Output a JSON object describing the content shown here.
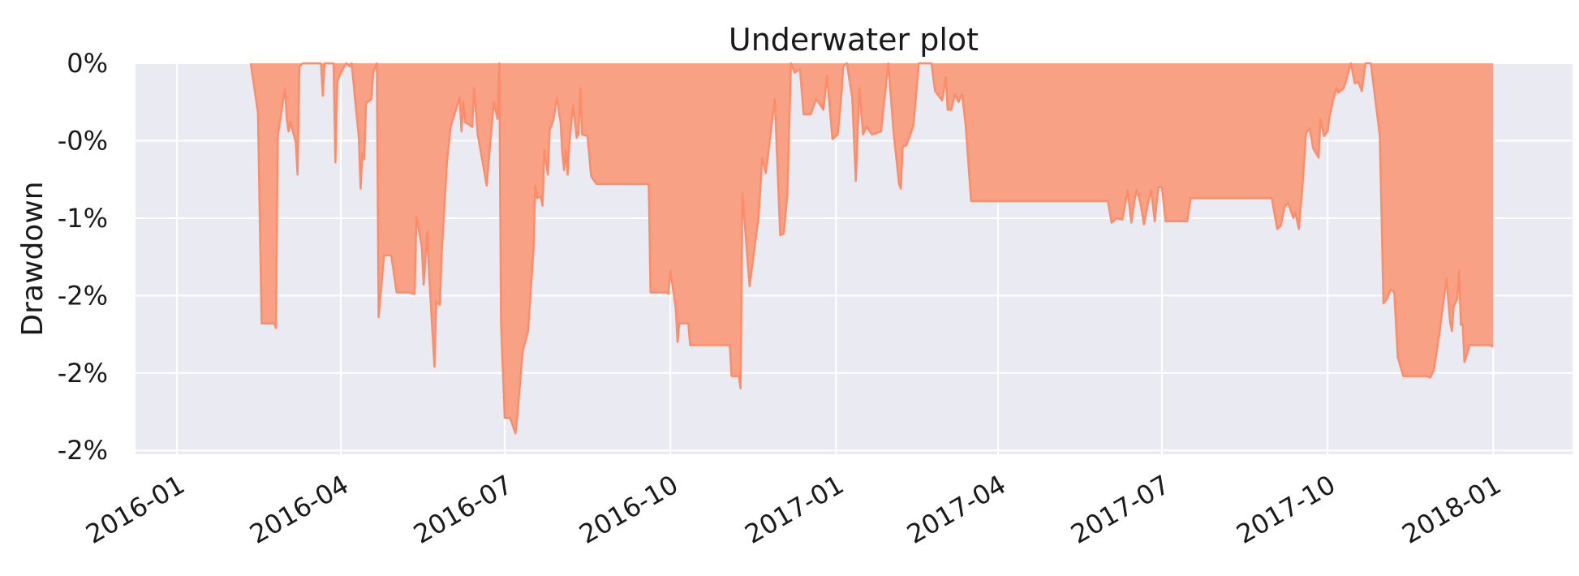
{
  "chart_data": {
    "type": "area",
    "title": "Underwater plot",
    "xlabel": "",
    "ylabel": "Drawdown",
    "x_range": [
      "2015-12-09",
      "2018-02-14"
    ],
    "y_range": [
      -0.02525,
      0
    ],
    "x_ticks": [
      {
        "date": "2016-01-01",
        "label": "2016-01"
      },
      {
        "date": "2016-04-01",
        "label": "2016-04"
      },
      {
        "date": "2016-07-01",
        "label": "2016-07"
      },
      {
        "date": "2016-10-01",
        "label": "2016-10"
      },
      {
        "date": "2017-01-01",
        "label": "2017-01"
      },
      {
        "date": "2017-04-01",
        "label": "2017-04"
      },
      {
        "date": "2017-07-01",
        "label": "2017-07"
      },
      {
        "date": "2017-10-01",
        "label": "2017-10"
      },
      {
        "date": "2018-01-01",
        "label": "2018-01"
      }
    ],
    "y_ticks": [
      {
        "value": 0,
        "label": "0%"
      },
      {
        "value": -0.005,
        "label": "-0%"
      },
      {
        "value": -0.01,
        "label": "-1%"
      },
      {
        "value": -0.015,
        "label": "-2%"
      },
      {
        "value": -0.02,
        "label": "-2%"
      },
      {
        "value": -0.025,
        "label": "-2%"
      }
    ],
    "grid": true,
    "colors": {
      "fill": "#f8a184",
      "line": "#ff8c69",
      "background": "#eaeaf2",
      "grid": "#ffffff"
    },
    "series": [
      {
        "points": [
          [
            "2016-02-11",
            0
          ],
          [
            "2016-02-15",
            -0.0032
          ],
          [
            "2016-02-17",
            -0.0168
          ],
          [
            "2016-02-24",
            -0.0168
          ],
          [
            "2016-02-25",
            -0.0171
          ],
          [
            "2016-02-26",
            -0.0047
          ],
          [
            "2016-03-01",
            -0.0016
          ],
          [
            "2016-03-02",
            -0.0036
          ],
          [
            "2016-03-03",
            -0.0044
          ],
          [
            "2016-03-04",
            -0.0038
          ],
          [
            "2016-03-07",
            -0.0051
          ],
          [
            "2016-03-08",
            -0.0072
          ],
          [
            "2016-03-09",
            -0.0002
          ],
          [
            "2016-03-11",
            0
          ],
          [
            "2016-03-21",
            0
          ],
          [
            "2016-03-22",
            -0.0021
          ],
          [
            "2016-03-23",
            0
          ],
          [
            "2016-03-28",
            0
          ],
          [
            "2016-03-29",
            -0.0064
          ],
          [
            "2016-03-30",
            -0.0012
          ],
          [
            "2016-04-01",
            -0.0006
          ],
          [
            "2016-04-04",
            0
          ],
          [
            "2016-04-06",
            -0.0002
          ],
          [
            "2016-04-07",
            0
          ],
          [
            "2016-04-11",
            -0.0048
          ],
          [
            "2016-04-12",
            -0.0081
          ],
          [
            "2016-04-13",
            -0.0058
          ],
          [
            "2016-04-14",
            -0.0062
          ],
          [
            "2016-04-15",
            -0.0026
          ],
          [
            "2016-04-18",
            -0.0023
          ],
          [
            "2016-04-19",
            -0.0006
          ],
          [
            "2016-04-21",
            0
          ],
          [
            "2016-04-22",
            -0.0164
          ],
          [
            "2016-04-25",
            -0.0124
          ],
          [
            "2016-04-29",
            -0.0124
          ],
          [
            "2016-05-02",
            -0.0148
          ],
          [
            "2016-05-09",
            -0.0148
          ],
          [
            "2016-05-12",
            -0.0149
          ],
          [
            "2016-05-13",
            -0.0099
          ],
          [
            "2016-05-16",
            -0.0119
          ],
          [
            "2016-05-17",
            -0.0143
          ],
          [
            "2016-05-19",
            -0.0109
          ],
          [
            "2016-05-20",
            -0.0135
          ],
          [
            "2016-05-23",
            -0.0196
          ],
          [
            "2016-05-24",
            -0.0154
          ],
          [
            "2016-05-26",
            -0.0156
          ],
          [
            "2016-05-27",
            -0.0123
          ],
          [
            "2016-05-30",
            -0.0063
          ],
          [
            "2016-06-01",
            -0.0041
          ],
          [
            "2016-06-06",
            -0.0022
          ],
          [
            "2016-06-07",
            -0.0044
          ],
          [
            "2016-06-08",
            -0.0025
          ],
          [
            "2016-06-09",
            -0.0038
          ],
          [
            "2016-06-13",
            -0.0041
          ],
          [
            "2016-06-14",
            -0.0016
          ],
          [
            "2016-06-16",
            -0.0046
          ],
          [
            "2016-06-20",
            -0.0072
          ],
          [
            "2016-06-21",
            -0.0079
          ],
          [
            "2016-06-23",
            -0.0051
          ],
          [
            "2016-06-25",
            -0.0025
          ],
          [
            "2016-06-27",
            -0.0036
          ],
          [
            "2016-06-28",
            0
          ],
          [
            "2016-06-29",
            -0.0169
          ],
          [
            "2016-07-01",
            -0.0229
          ],
          [
            "2016-07-04",
            -0.0229
          ],
          [
            "2016-07-07",
            -0.0239
          ],
          [
            "2016-07-08",
            -0.0228
          ],
          [
            "2016-07-11",
            -0.0186
          ],
          [
            "2016-07-14",
            -0.0173
          ],
          [
            "2016-07-17",
            -0.012
          ],
          [
            "2016-07-18",
            -0.0079
          ],
          [
            "2016-07-19",
            -0.0087
          ],
          [
            "2016-07-21",
            -0.0086
          ],
          [
            "2016-07-22",
            -0.0092
          ],
          [
            "2016-07-23",
            -0.0056
          ],
          [
            "2016-07-25",
            -0.0072
          ],
          [
            "2016-07-26",
            -0.0043
          ],
          [
            "2016-07-28",
            -0.0037
          ],
          [
            "2016-07-30",
            -0.0022
          ],
          [
            "2016-08-01",
            -0.0038
          ],
          [
            "2016-08-02",
            -0.0058
          ],
          [
            "2016-08-03",
            -0.0069
          ],
          [
            "2016-08-04",
            -0.0056
          ],
          [
            "2016-08-05",
            -0.0072
          ],
          [
            "2016-08-06",
            -0.005
          ],
          [
            "2016-08-08",
            -0.0027
          ],
          [
            "2016-08-10",
            -0.0048
          ],
          [
            "2016-08-11",
            -0.0046
          ],
          [
            "2016-08-12",
            -0.0016
          ],
          [
            "2016-08-13",
            -0.0046
          ],
          [
            "2016-08-16",
            -0.0047
          ],
          [
            "2016-08-18",
            -0.0073
          ],
          [
            "2016-08-21",
            -0.0078
          ],
          [
            "2016-09-19",
            -0.0078
          ],
          [
            "2016-09-20",
            -0.0148
          ],
          [
            "2016-09-29",
            -0.0148
          ],
          [
            "2016-09-30",
            -0.0149
          ],
          [
            "2016-10-01",
            -0.0134
          ],
          [
            "2016-10-04",
            -0.0158
          ],
          [
            "2016-10-05",
            -0.018
          ],
          [
            "2016-10-06",
            -0.0168
          ],
          [
            "2016-10-11",
            -0.0168
          ],
          [
            "2016-10-12",
            -0.0182
          ],
          [
            "2016-11-03",
            -0.0182
          ],
          [
            "2016-11-04",
            -0.0202
          ],
          [
            "2016-11-08",
            -0.0202
          ],
          [
            "2016-11-09",
            -0.021
          ],
          [
            "2016-11-10",
            -0.0084
          ],
          [
            "2016-11-14",
            -0.0144
          ],
          [
            "2016-11-19",
            -0.0099
          ],
          [
            "2016-11-21",
            -0.0061
          ],
          [
            "2016-11-23",
            -0.0071
          ],
          [
            "2016-11-28",
            -0.0023
          ],
          [
            "2016-12-01",
            -0.0111
          ],
          [
            "2016-12-03",
            -0.011
          ],
          [
            "2016-12-05",
            -0.0084
          ],
          [
            "2016-12-07",
            0
          ],
          [
            "2016-12-09",
            -0.0006
          ],
          [
            "2016-12-12",
            -0.0004
          ],
          [
            "2016-12-14",
            -0.0033
          ],
          [
            "2016-12-18",
            -0.0033
          ],
          [
            "2016-12-21",
            -0.0023
          ],
          [
            "2016-12-25",
            -0.003
          ],
          [
            "2016-12-27",
            -0.0008
          ],
          [
            "2016-12-30",
            -0.0049
          ],
          [
            "2017-01-02",
            -0.0046
          ],
          [
            "2017-01-04",
            -0.002
          ],
          [
            "2017-01-05",
            -0.0002
          ],
          [
            "2017-01-07",
            0
          ],
          [
            "2017-01-10",
            -0.0022
          ],
          [
            "2017-01-12",
            -0.0076
          ],
          [
            "2017-01-14",
            -0.0016
          ],
          [
            "2017-01-16",
            -0.0046
          ],
          [
            "2017-01-18",
            -0.0041
          ],
          [
            "2017-01-21",
            -0.0046
          ],
          [
            "2017-01-26",
            -0.0044
          ],
          [
            "2017-01-30",
            0
          ],
          [
            "2017-02-02",
            -0.0045
          ],
          [
            "2017-02-05",
            -0.0078
          ],
          [
            "2017-02-06",
            -0.0081
          ],
          [
            "2017-02-07",
            -0.0054
          ],
          [
            "2017-02-09",
            -0.0053
          ],
          [
            "2017-02-11",
            -0.0047
          ],
          [
            "2017-02-13",
            -0.004
          ],
          [
            "2017-02-16",
            0
          ],
          [
            "2017-02-23",
            0
          ],
          [
            "2017-02-25",
            -0.0018
          ],
          [
            "2017-03-01",
            -0.0024
          ],
          [
            "2017-03-03",
            -0.0009
          ],
          [
            "2017-03-04",
            -0.003
          ],
          [
            "2017-03-06",
            -0.003
          ],
          [
            "2017-03-08",
            -0.002
          ],
          [
            "2017-03-10",
            -0.0025
          ],
          [
            "2017-03-12",
            -0.002
          ],
          [
            "2017-03-14",
            -0.004
          ],
          [
            "2017-03-17",
            -0.0089
          ],
          [
            "2017-06-01",
            -0.0089
          ],
          [
            "2017-06-03",
            -0.0103
          ],
          [
            "2017-06-06",
            -0.01
          ],
          [
            "2017-06-09",
            -0.0101
          ],
          [
            "2017-06-12",
            -0.0082
          ],
          [
            "2017-06-14",
            -0.0103
          ],
          [
            "2017-06-16",
            -0.0087
          ],
          [
            "2017-06-17",
            -0.0082
          ],
          [
            "2017-06-19",
            -0.009
          ],
          [
            "2017-06-21",
            -0.0104
          ],
          [
            "2017-06-23",
            -0.0092
          ],
          [
            "2017-06-25",
            -0.0082
          ],
          [
            "2017-06-27",
            -0.0102
          ],
          [
            "2017-06-29",
            -0.008
          ],
          [
            "2017-07-01",
            -0.008
          ],
          [
            "2017-07-03",
            -0.0102
          ],
          [
            "2017-07-12",
            -0.0102
          ],
          [
            "2017-07-15",
            -0.0102
          ],
          [
            "2017-07-17",
            -0.0087
          ],
          [
            "2017-08-31",
            -0.0087
          ],
          [
            "2017-09-03",
            -0.0107
          ],
          [
            "2017-09-05",
            -0.0105
          ],
          [
            "2017-09-07",
            -0.0093
          ],
          [
            "2017-09-09",
            -0.009
          ],
          [
            "2017-09-12",
            -0.01
          ],
          [
            "2017-09-13",
            -0.0096
          ],
          [
            "2017-09-15",
            -0.0107
          ],
          [
            "2017-09-17",
            -0.008
          ],
          [
            "2017-09-19",
            -0.0045
          ],
          [
            "2017-09-21",
            -0.0042
          ],
          [
            "2017-09-23",
            -0.0055
          ],
          [
            "2017-09-26",
            -0.0061
          ],
          [
            "2017-09-27",
            -0.0036
          ],
          [
            "2017-09-29",
            -0.0047
          ],
          [
            "2017-10-01",
            -0.0044
          ],
          [
            "2017-10-02",
            -0.0035
          ],
          [
            "2017-10-04",
            -0.0024
          ],
          [
            "2017-10-06",
            -0.0016
          ],
          [
            "2017-10-07",
            -0.0019
          ],
          [
            "2017-10-10",
            -0.0016
          ],
          [
            "2017-10-12",
            -0.0008
          ],
          [
            "2017-10-14",
            0
          ],
          [
            "2017-10-16",
            -0.0013
          ],
          [
            "2017-10-18",
            -0.0012
          ],
          [
            "2017-10-20",
            -0.0018
          ],
          [
            "2017-10-22",
            0
          ],
          [
            "2017-10-25",
            0
          ],
          [
            "2017-10-30",
            -0.0047
          ],
          [
            "2017-11-01",
            -0.0155
          ],
          [
            "2017-11-03",
            -0.0152
          ],
          [
            "2017-11-05",
            -0.0146
          ],
          [
            "2017-11-07",
            -0.0148
          ],
          [
            "2017-11-09",
            -0.019
          ],
          [
            "2017-11-12",
            -0.0202
          ],
          [
            "2017-11-20",
            -0.0202
          ],
          [
            "2017-11-25",
            -0.0202
          ],
          [
            "2017-11-27",
            -0.0203
          ],
          [
            "2017-11-29",
            -0.0198
          ],
          [
            "2017-12-02",
            -0.0175
          ],
          [
            "2017-12-06",
            -0.0139
          ],
          [
            "2017-12-08",
            -0.0167
          ],
          [
            "2017-12-09",
            -0.0173
          ],
          [
            "2017-12-10",
            -0.0157
          ],
          [
            "2017-12-12",
            -0.0152
          ],
          [
            "2017-12-13",
            -0.0134
          ],
          [
            "2017-12-14",
            -0.0169
          ],
          [
            "2017-12-15",
            -0.0168
          ],
          [
            "2017-12-16",
            -0.0193
          ],
          [
            "2017-12-19",
            -0.0182
          ],
          [
            "2017-12-30",
            -0.0182
          ],
          [
            "2018-01-01",
            -0.0183
          ]
        ]
      }
    ]
  }
}
